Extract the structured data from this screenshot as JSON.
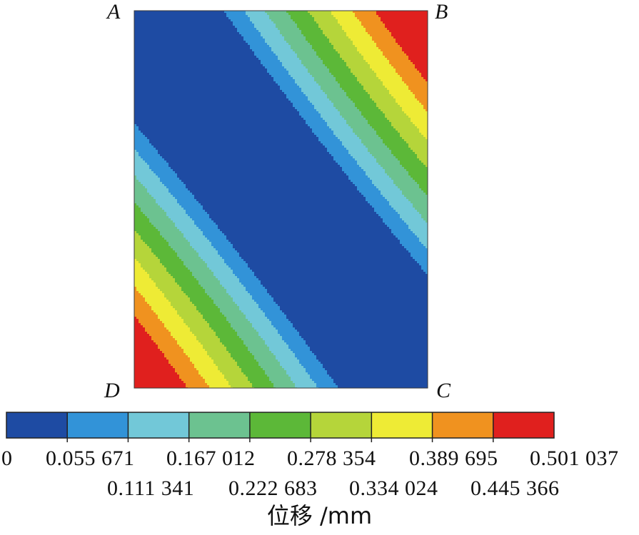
{
  "chart_data": {
    "type": "heatmap",
    "corners": {
      "top_left": "A",
      "top_right": "B",
      "bottom_right": "C",
      "bottom_left": "D"
    },
    "colorbar": {
      "label": "位移 /mm",
      "boundaries": [
        0,
        0.055671,
        0.111341,
        0.167012,
        0.222683,
        0.278354,
        0.334024,
        0.389695,
        0.445366,
        0.501037
      ],
      "tick_labels_upper": [
        "0",
        "0.055 671",
        "0.167 012",
        "0.278 354",
        "0.389 695",
        "0.501 037"
      ],
      "tick_labels_lower": [
        "0.111 341",
        "0.222 683",
        "0.334 024",
        "0.445 366"
      ],
      "colors": [
        "#1E4BA3",
        "#3293D8",
        "#72C8D8",
        "#6CC290",
        "#5CB838",
        "#B5D53A",
        "#EEEB35",
        "#F0921F",
        "#E0201E"
      ]
    },
    "field": {
      "description_of_values": "displacement magnitude",
      "max_corner": "B and D",
      "min_band": "diagonal from A to C"
    }
  }
}
